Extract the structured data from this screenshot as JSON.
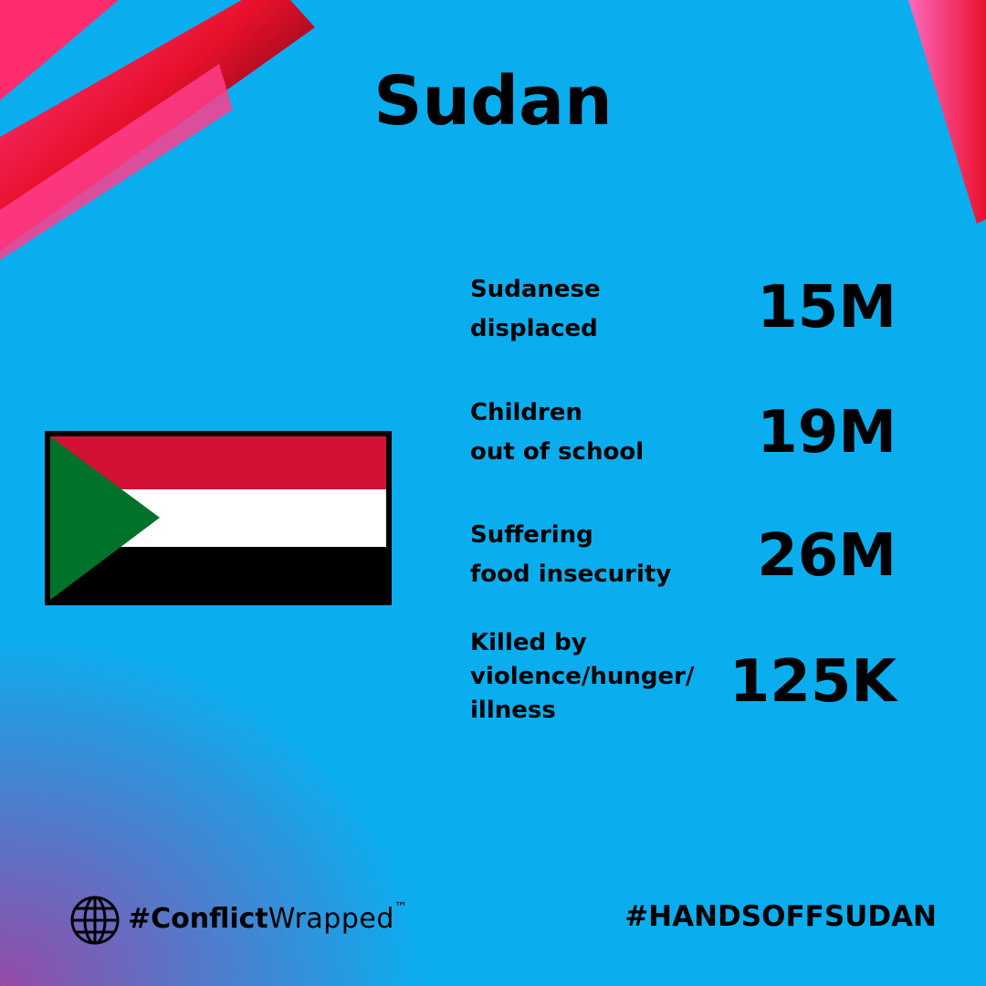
{
  "title": "Sudan",
  "stats": [
    {
      "label": [
        "Sudanese",
        "displaced"
      ],
      "value": "15M"
    },
    {
      "label": [
        "Children",
        "out of school"
      ],
      "value": "19M"
    },
    {
      "label": [
        "Suffering",
        "food insecurity"
      ],
      "value": "26M"
    },
    {
      "label": [
        "Killed by",
        "violence/hunger/",
        "illness"
      ],
      "value": "125K"
    }
  ],
  "footer": {
    "brand_bold": "#Conflict",
    "brand_light": "Wrapped",
    "brand_mark": "™",
    "hashtag": "#HANDSOFFSUDAN"
  }
}
